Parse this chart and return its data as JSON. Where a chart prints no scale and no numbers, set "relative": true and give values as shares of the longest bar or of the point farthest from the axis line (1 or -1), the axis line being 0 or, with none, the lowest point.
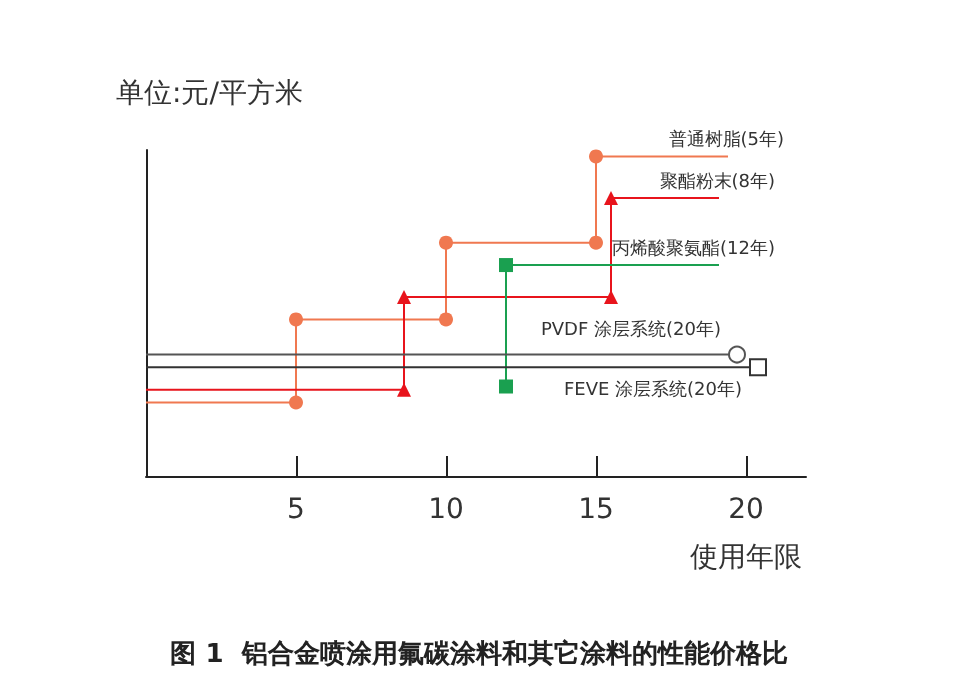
{
  "chart_data": {
    "type": "line",
    "relative": true,
    "title": "图 1  铝合金喷涂用氟碳涂料和其它涂料的性能价格比",
    "ylabel": "单位:元/平方米",
    "xlabel": "使用年限",
    "xlim": [
      0,
      22
    ],
    "xticks": [
      5,
      10,
      15,
      20
    ],
    "grid": false,
    "legend": false,
    "series": [
      {
        "name": "普通树脂(5年)",
        "color": "#f07850",
        "marker": "circle",
        "x": [
          0,
          5,
          5,
          10,
          10,
          15,
          15,
          19.4
        ],
        "values": [
          0.23,
          0.23,
          0.49,
          0.49,
          0.73,
          0.73,
          1,
          1
        ]
      },
      {
        "name": "聚酯粉末(8年)",
        "color": "#e8141c",
        "marker": "triangle",
        "x": [
          0,
          8.6,
          8.6,
          15.5,
          15.5,
          19.1
        ],
        "values": [
          0.27,
          0.27,
          0.56,
          0.56,
          0.87,
          0.87
        ]
      },
      {
        "name": "丙烯酸聚氨酯(12年)",
        "color": "#1aa050",
        "marker": "square",
        "x": [
          12,
          12,
          19.1
        ],
        "values": [
          0.28,
          0.66,
          0.66
        ]
      },
      {
        "name": "PVDF 涂层系统(20年)",
        "color": "#555555",
        "marker": "circle",
        "x": [
          0,
          19.7
        ],
        "values": [
          0.38,
          0.38
        ]
      },
      {
        "name": "FEVE 涂层系统(20年)",
        "color": "#333333",
        "marker": "square",
        "x": [
          0,
          20.4
        ],
        "values": [
          0.34,
          0.34
        ]
      }
    ]
  }
}
